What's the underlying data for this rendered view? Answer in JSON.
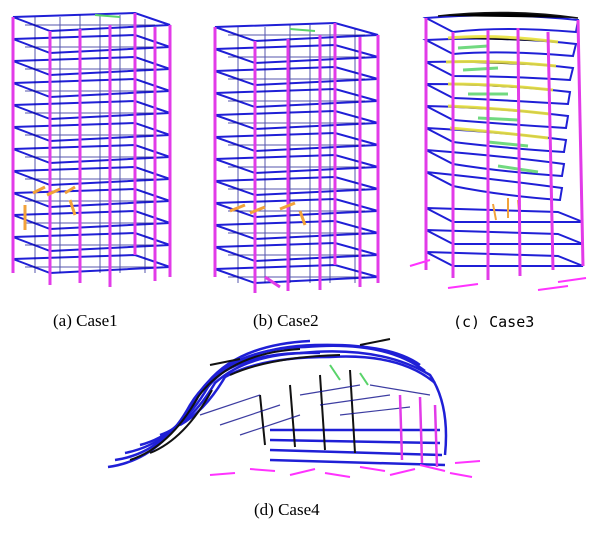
{
  "captions": {
    "a": "(a) Case1",
    "b": "(b) Case2",
    "c": "(c) Case3",
    "d": "(d) Case4"
  },
  "colors": {
    "beam": "#1f1fd6",
    "beam_dark": "#0d0d8a",
    "column": "#e23be8",
    "column_light": "#ff55ff",
    "stress_orange": "#f2a23a",
    "stress_yellow": "#e8e23a",
    "stress_green": "#59d36a",
    "collapsed": "#111111",
    "debris": "#ff33ff"
  }
}
